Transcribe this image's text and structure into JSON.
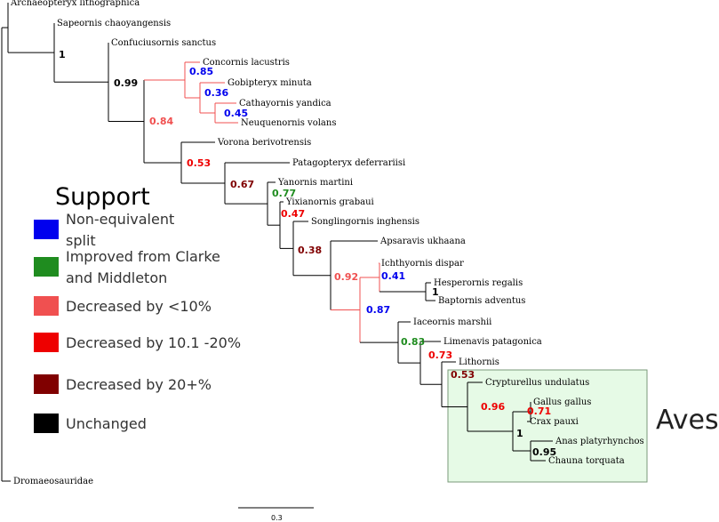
{
  "colors": {
    "blue": "#0000ee",
    "green": "#1f8c1f",
    "light_red": "#f05050",
    "red": "#ee0000",
    "dark_red": "#800000",
    "black": "#000000",
    "aves_fill": "#e6fae6",
    "aves_border": "#7a9a7a"
  },
  "taxa": [
    "Archaeopteryx lithographica",
    "Sapeornis chaoyangensis",
    "Confuciusornis sanctus",
    "Concornis lacustris",
    "Gobipteryx minuta",
    "Cathayornis yandica",
    "Neuquenornis volans",
    "Vorona berivotrensis",
    "Patagopteryx deferrariisi",
    "Yanornis martini",
    "Yixianornis grabaui",
    "Songlingornis inghensis",
    "Apsaravis ukhaana",
    "Ichthyornis dispar",
    "Hesperornis regalis",
    "Baptornis adventus",
    "Iaceornis marshii",
    "Limenavis patagonica",
    "Lithornis",
    "Crypturellus undulatus",
    "Gallus gallus",
    "Crax pauxi",
    "Anas platyrhynchos",
    "Chauna torquata",
    "Dromaeosauridae"
  ],
  "support": [
    {
      "value": "1",
      "category": "Unchanged"
    },
    {
      "value": "0.99",
      "category": "Unchanged"
    },
    {
      "value": "0.84",
      "category": "Decreased by <10%"
    },
    {
      "value": "0.85",
      "category": "Non-equivalent split"
    },
    {
      "value": "0.36",
      "category": "Non-equivalent split"
    },
    {
      "value": "0.45",
      "category": "Non-equivalent split"
    },
    {
      "value": "0.53",
      "category": "Decreased by 10.1 -20%"
    },
    {
      "value": "0.67",
      "category": "Decreased by 20+%"
    },
    {
      "value": "0.77",
      "category": "Improved from Clarke and Middleton"
    },
    {
      "value": "0.47",
      "category": "Decreased by 10.1 -20%"
    },
    {
      "value": "0.38",
      "category": "Decreased by 20+%"
    },
    {
      "value": "0.92",
      "category": "Decreased by <10%"
    },
    {
      "value": "0.41",
      "category": "Non-equivalent split"
    },
    {
      "value": "1",
      "category": "Unchanged"
    },
    {
      "value": "0.87",
      "category": "Non-equivalent split"
    },
    {
      "value": "0.83",
      "category": "Improved from Clarke and Middleton"
    },
    {
      "value": "0.73",
      "category": "Decreased by 10.1 -20%"
    },
    {
      "value": "0.53",
      "category": "Decreased by 20+%"
    },
    {
      "value": "0.96",
      "category": "Decreased by 10.1 -20%"
    },
    {
      "value": "0.71",
      "category": "Decreased by 10.1 -20%"
    },
    {
      "value": "1",
      "category": "Unchanged"
    },
    {
      "value": "0.95",
      "category": "Unchanged"
    }
  ],
  "legend": {
    "title": "Support",
    "items": [
      {
        "lines": [
          "Non-equivalent",
          "split"
        ],
        "color": "#0000ee"
      },
      {
        "lines": [
          "Improved from Clarke",
          "and Middleton"
        ],
        "color": "#1f8c1f"
      },
      {
        "lines": [
          "Decreased by <10%"
        ],
        "color": "#f05050"
      },
      {
        "lines": [
          "Decreased by 10.1 -20%"
        ],
        "color": "#ee0000"
      },
      {
        "lines": [
          "Decreased by 20+%"
        ],
        "color": "#800000"
      },
      {
        "lines": [
          "Unchanged"
        ],
        "color": "#000000"
      }
    ]
  },
  "clade_label": "Aves",
  "scale_bar": {
    "label": "0.3",
    "value": 0.3
  }
}
